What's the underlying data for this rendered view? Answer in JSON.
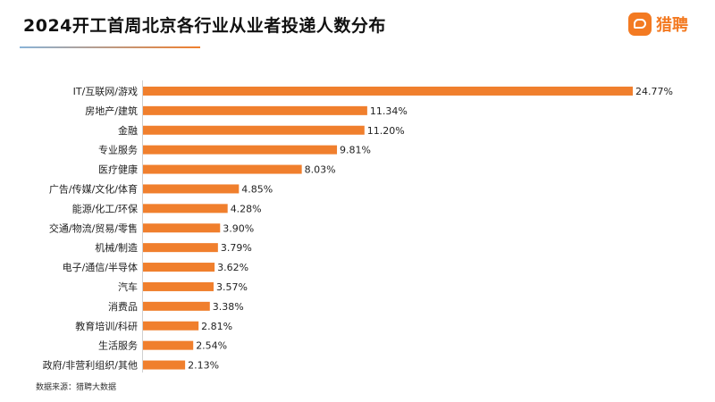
{
  "title": "2024开工首周北京各行业从业者投递人数分布",
  "brand": {
    "name": "猎聘",
    "icon": "chat-bubble-icon",
    "color": "#f37a22"
  },
  "source": "数据来源：猎聘大数据",
  "chart_data": {
    "type": "bar",
    "orientation": "horizontal",
    "bar_color": "#f07f2d",
    "categories": [
      "IT/互联网/游戏",
      "房地产/建筑",
      "金融",
      "专业服务",
      "医疗健康",
      "广告/传媒/文化/体育",
      "能源/化工/环保",
      "交通/物流/贸易/零售",
      "机械/制造",
      "电子/通信/半导体",
      "汽车",
      "消费品",
      "教育培训/科研",
      "生活服务",
      "政府/非营利组织/其他"
    ],
    "values": [
      24.77,
      11.34,
      11.2,
      9.81,
      8.03,
      4.85,
      4.28,
      3.9,
      3.79,
      3.62,
      3.57,
      3.38,
      2.81,
      2.54,
      2.13
    ],
    "value_labels": [
      "24.77%",
      "11.34%",
      "11.20%",
      "9.81%",
      "8.03%",
      "4.85%",
      "4.28%",
      "3.90%",
      "3.79%",
      "3.62%",
      "3.57%",
      "3.38%",
      "2.81%",
      "2.54%",
      "2.13%"
    ],
    "xlim": [
      0,
      24.77
    ],
    "grid": false,
    "legend": "none"
  }
}
